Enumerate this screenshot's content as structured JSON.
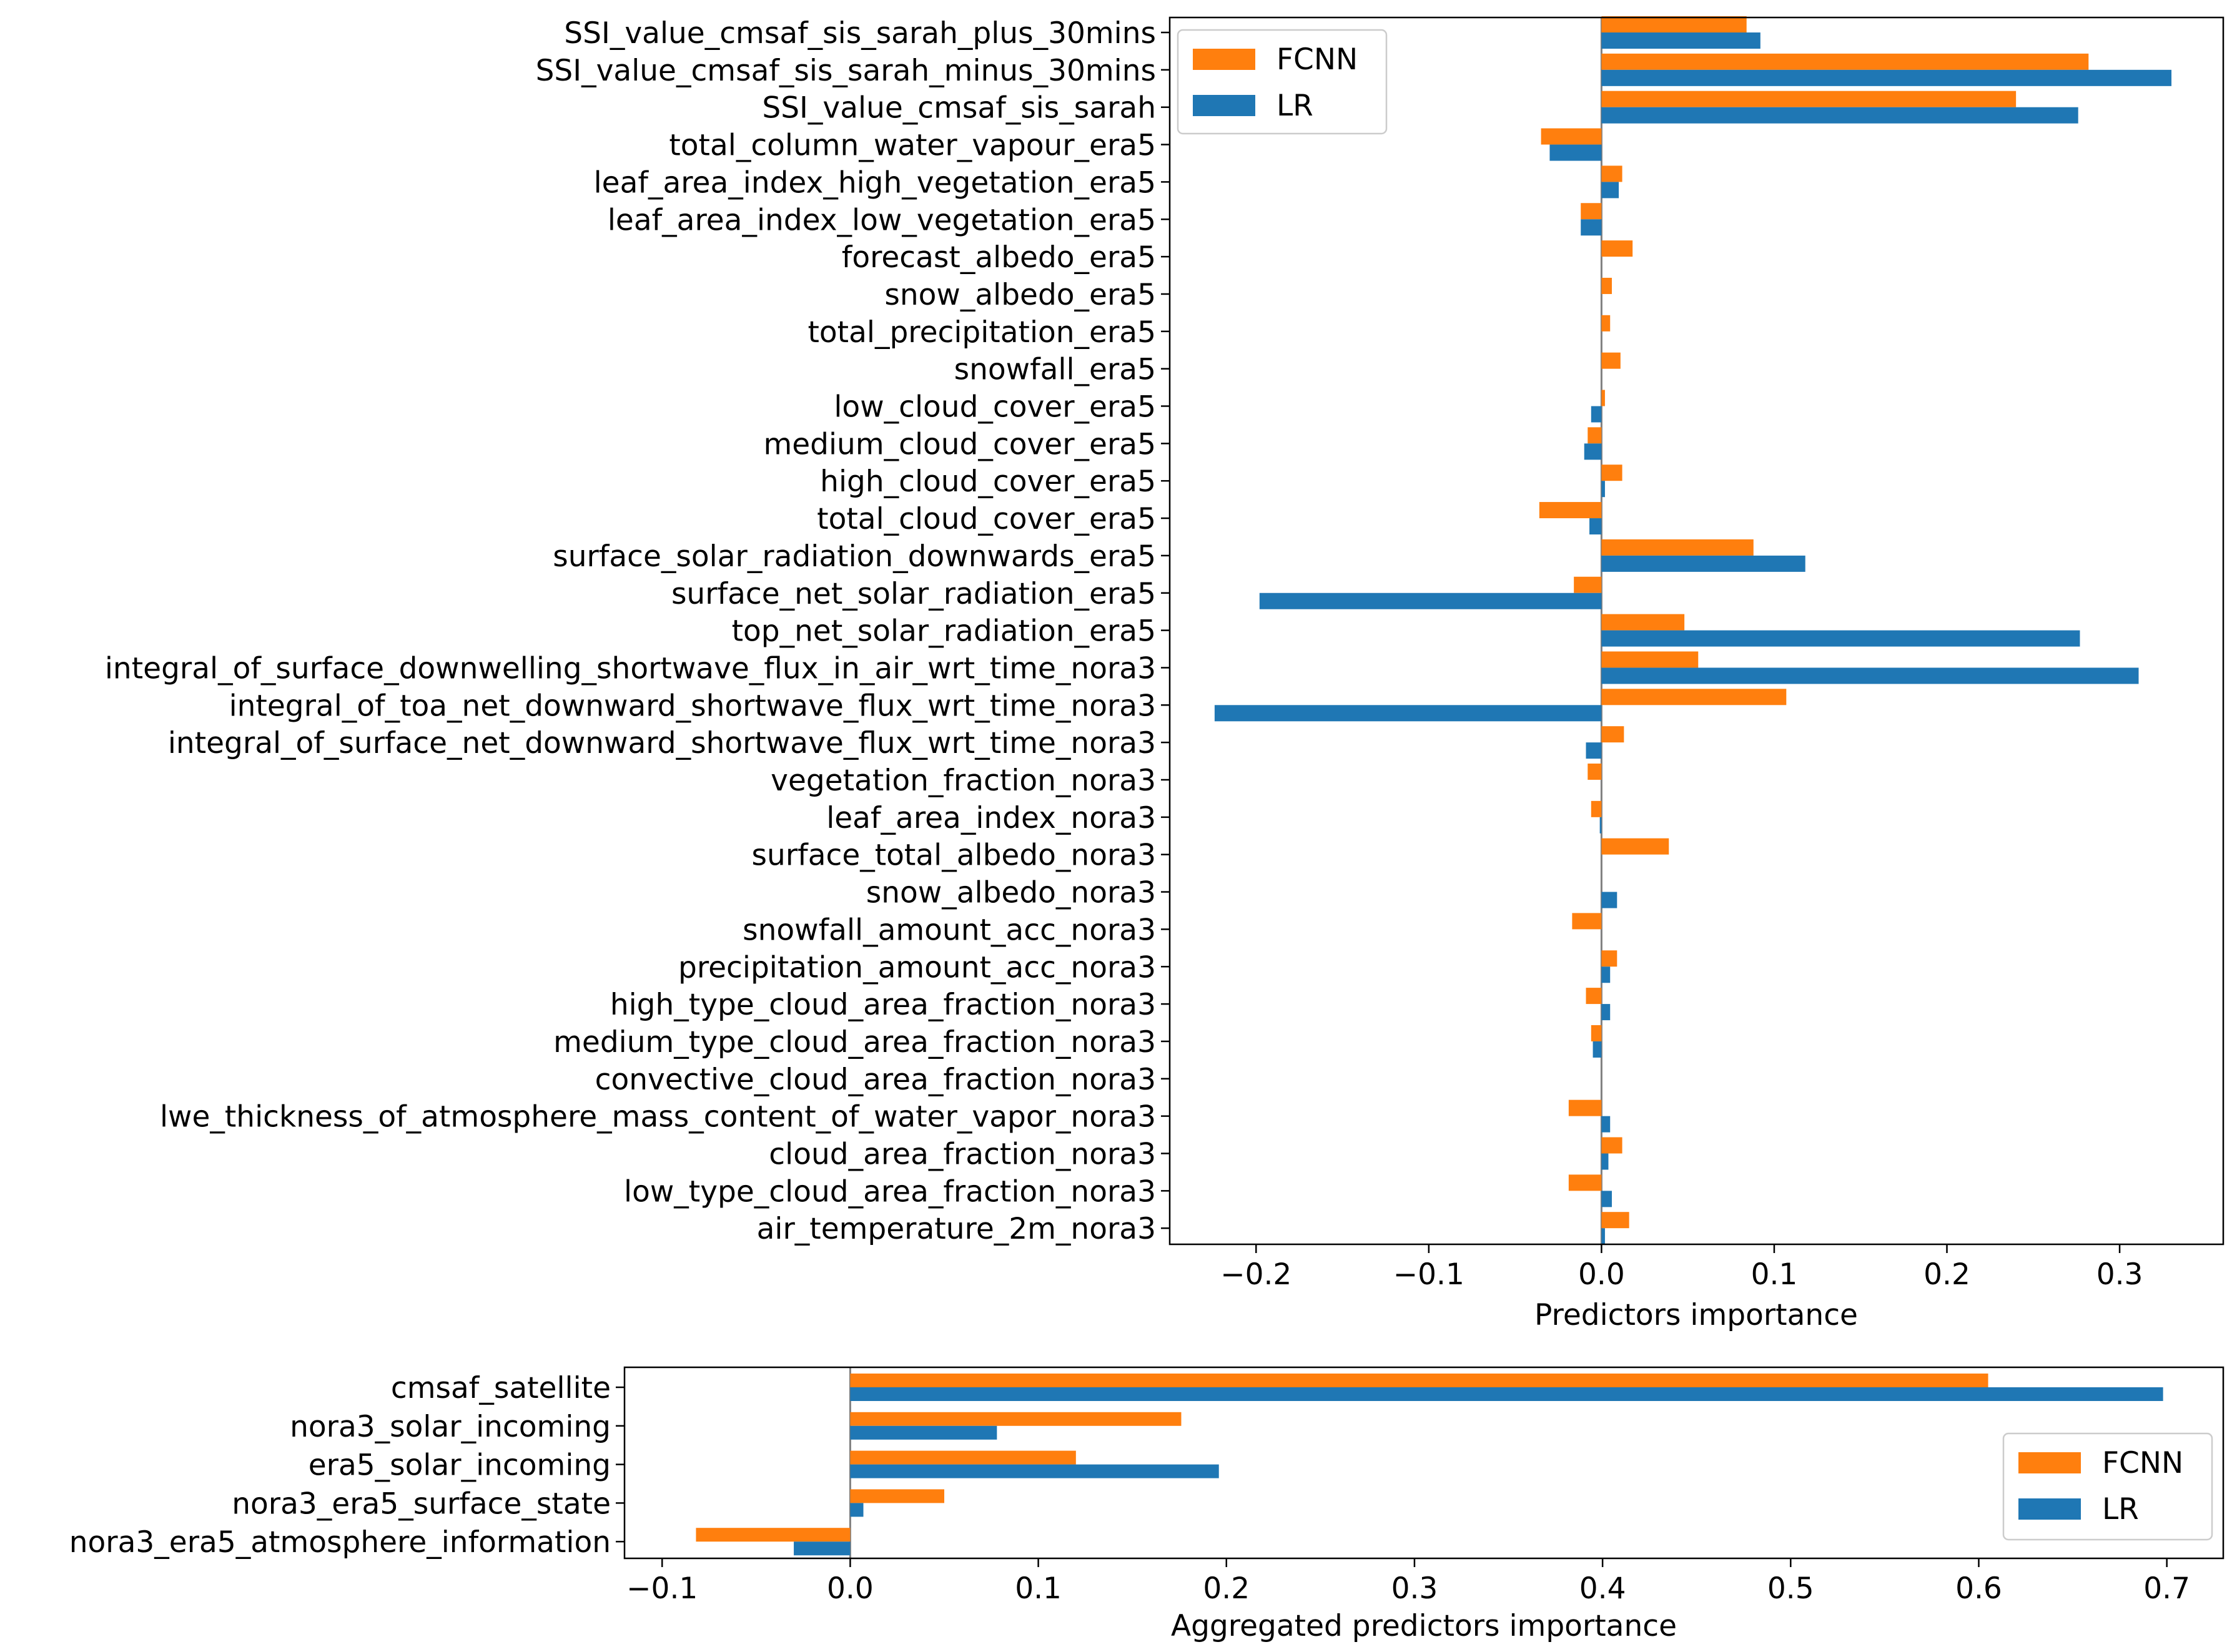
{
  "chart_data": [
    {
      "type": "bar",
      "orientation": "horizontal",
      "xlabel": "Predictors importance",
      "xlim": [
        -0.25,
        0.36
      ],
      "xticks": [
        -0.2,
        -0.1,
        0.0,
        0.1,
        0.2,
        0.3
      ],
      "xtick_labels": [
        "−0.2",
        "−0.1",
        "0.0",
        "0.1",
        "0.2",
        "0.3"
      ],
      "legend_position": "top-left",
      "categories": [
        "SSI_value_cmsaf_sis_sarah_plus_30mins",
        "SSI_value_cmsaf_sis_sarah_minus_30mins",
        "SSI_value_cmsaf_sis_sarah",
        "total_column_water_vapour_era5",
        "leaf_area_index_high_vegetation_era5",
        "leaf_area_index_low_vegetation_era5",
        "forecast_albedo_era5",
        "snow_albedo_era5",
        "total_precipitation_era5",
        "snowfall_era5",
        "low_cloud_cover_era5",
        "medium_cloud_cover_era5",
        "high_cloud_cover_era5",
        "total_cloud_cover_era5",
        "surface_solar_radiation_downwards_era5",
        "surface_net_solar_radiation_era5",
        "top_net_solar_radiation_era5",
        "integral_of_surface_downwelling_shortwave_flux_in_air_wrt_time_nora3",
        "integral_of_toa_net_downward_shortwave_flux_wrt_time_nora3",
        "integral_of_surface_net_downward_shortwave_flux_wrt_time_nora3",
        "vegetation_fraction_nora3",
        "leaf_area_index_nora3",
        "surface_total_albedo_nora3",
        "snow_albedo_nora3",
        "snowfall_amount_acc_nora3",
        "precipitation_amount_acc_nora3",
        "high_type_cloud_area_fraction_nora3",
        "medium_type_cloud_area_fraction_nora3",
        "convective_cloud_area_fraction_nora3",
        "lwe_thickness_of_atmosphere_mass_content_of_water_vapor_nora3",
        "cloud_area_fraction_nora3",
        "low_type_cloud_area_fraction_nora3",
        "air_temperature_2m_nora3"
      ],
      "series": [
        {
          "name": "FCNN",
          "color": "#ff7f0e",
          "values": [
            0.084,
            0.282,
            0.24,
            -0.035,
            0.012,
            -0.012,
            0.018,
            0.006,
            0.005,
            0.011,
            0.002,
            -0.008,
            0.012,
            -0.036,
            0.088,
            -0.016,
            0.048,
            0.056,
            0.107,
            0.013,
            -0.008,
            -0.006,
            0.039,
            0.0,
            -0.017,
            0.009,
            -0.009,
            -0.006,
            0.0,
            -0.019,
            0.012,
            -0.019,
            0.016
          ]
        },
        {
          "name": "LR",
          "color": "#1f77b4",
          "values": [
            0.092,
            0.33,
            0.276,
            -0.03,
            0.01,
            -0.012,
            0.0,
            0.0,
            0.0,
            0.0,
            -0.006,
            -0.01,
            0.002,
            -0.007,
            0.118,
            -0.198,
            0.277,
            0.311,
            -0.224,
            -0.009,
            0.0,
            -0.001,
            0.0,
            0.009,
            0.0,
            0.005,
            0.005,
            -0.005,
            0.0,
            0.005,
            0.004,
            0.006,
            0.002
          ]
        }
      ]
    },
    {
      "type": "bar",
      "orientation": "horizontal",
      "xlabel": "Aggregated predictors importance",
      "xlim": [
        -0.12,
        0.73
      ],
      "xticks": [
        -0.1,
        0.0,
        0.1,
        0.2,
        0.3,
        0.4,
        0.5,
        0.6,
        0.7
      ],
      "xtick_labels": [
        "−0.1",
        "0.0",
        "0.1",
        "0.2",
        "0.3",
        "0.4",
        "0.5",
        "0.6",
        "0.7"
      ],
      "legend_position": "center-right",
      "categories": [
        "cmsaf_satellite",
        "nora3_solar_incoming",
        "era5_solar_incoming",
        "nora3_era5_surface_state",
        "nora3_era5_atmosphere_information"
      ],
      "series": [
        {
          "name": "FCNN",
          "color": "#ff7f0e",
          "values": [
            0.605,
            0.176,
            0.12,
            0.05,
            -0.082
          ]
        },
        {
          "name": "LR",
          "color": "#1f77b4",
          "values": [
            0.698,
            0.078,
            0.196,
            0.007,
            -0.03
          ]
        }
      ]
    }
  ]
}
